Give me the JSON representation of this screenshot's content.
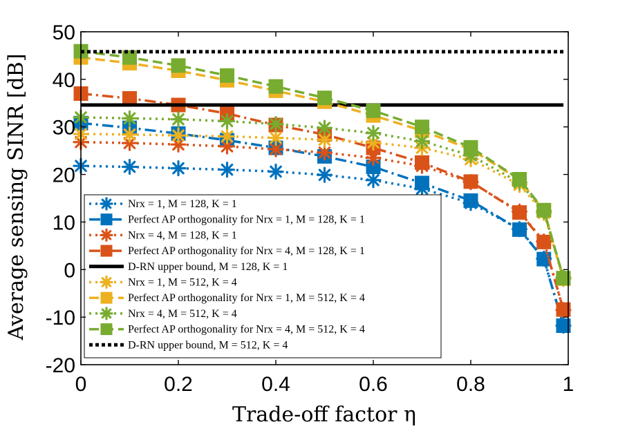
{
  "chart_data": {
    "type": "line",
    "title": "",
    "xlabel": "Trade-off factor η",
    "ylabel": "Average sensing SINR [dB]",
    "xlim": [
      0,
      1
    ],
    "ylim": [
      -20,
      50
    ],
    "xticks": [
      0,
      0.2,
      0.4,
      0.6,
      0.8,
      1
    ],
    "xtick_labels": [
      "0",
      "0.2",
      "0.4",
      "0.6",
      "0.8",
      "1"
    ],
    "yticks": [
      -20,
      -10,
      0,
      10,
      20,
      30,
      40,
      50
    ],
    "ytick_labels": [
      "-20",
      "-10",
      "0",
      "10",
      "20",
      "30",
      "40",
      "50"
    ],
    "grid": false,
    "legend_position": "bottom-left",
    "x": [
      0,
      0.1,
      0.2,
      0.3,
      0.4,
      0.5,
      0.6,
      0.7,
      0.8,
      0.9,
      0.95,
      0.99
    ],
    "series": [
      {
        "name": "N_rx = 1, M = 128, K = 1",
        "legend": "Nrx = 1, M = 128, K = 1",
        "color": "#0072BD",
        "style": "dotted",
        "marker": "asterisk",
        "values": [
          21.8,
          21.6,
          21.3,
          21.0,
          20.6,
          19.9,
          18.8,
          17.0,
          14.0,
          8.5,
          2.3,
          -11.8
        ]
      },
      {
        "name": "Perfect AP orthogonality for N_rx = 1, M = 128, K = 1",
        "legend": "Perfect AP orthogonality for Nrx = 1, M = 128, K = 1",
        "color": "#0072BD",
        "style": "dashdot",
        "marker": "square",
        "values": [
          30.8,
          29.8,
          28.6,
          27.2,
          25.6,
          23.8,
          21.6,
          18.2,
          14.5,
          8.4,
          2.2,
          -11.8
        ]
      },
      {
        "name": "N_rx = 4, M = 128, K = 1",
        "legend": "Nrx = 4, M = 128, K = 1",
        "color": "#D95319",
        "style": "dotted",
        "marker": "asterisk",
        "values": [
          26.8,
          26.6,
          26.3,
          25.9,
          25.3,
          24.6,
          23.5,
          21.8,
          18.4,
          12.2,
          5.9,
          -8.5
        ]
      },
      {
        "name": "Perfect AP orthogonality for N_rx = 4, M = 128, K = 1",
        "legend": "Perfect AP orthogonality for Nrx = 4, M = 128, K = 1",
        "color": "#D95319",
        "style": "dashdot",
        "marker": "square",
        "values": [
          37.0,
          36.0,
          34.6,
          32.8,
          30.4,
          28.4,
          25.6,
          22.5,
          18.5,
          12.0,
          5.8,
          -8.4
        ]
      },
      {
        "name": "D-RN upper bound, M = 128, K = 1",
        "legend": "D-RN upper bound, M = 128, K = 1",
        "color": "#000000",
        "style": "solid",
        "marker": "none",
        "values": [
          34.6,
          34.6,
          34.6,
          34.6,
          34.6,
          34.6,
          34.6,
          34.6,
          34.6,
          34.6,
          34.6,
          34.6
        ]
      },
      {
        "name": "N_rx = 1, M = 512, K = 4",
        "legend": "Nrx = 1, M = 512, K = 4",
        "color": "#EDB120",
        "style": "dotted",
        "marker": "asterisk",
        "values": [
          28.5,
          28.4,
          28.2,
          28.0,
          27.7,
          27.3,
          26.7,
          25.6,
          23.2,
          17.8,
          11.9,
          -2.0
        ]
      },
      {
        "name": "Perfect AP orthogonality for N_rx = 1, M = 512, K = 4",
        "legend": "Perfect AP orthogonality for Nrx = 1, M = 512, K = 4",
        "color": "#EDB120",
        "style": "dashed",
        "marker": "square",
        "values": [
          44.6,
          43.4,
          41.8,
          39.8,
          37.6,
          35.3,
          32.4,
          29.2,
          25.3,
          18.9,
          12.4,
          -1.9
        ]
      },
      {
        "name": "N_rx = 4, M = 512, K = 4",
        "legend": "Nrx = 4, M = 512, K = 4",
        "color": "#77AC30",
        "style": "dotted",
        "marker": "asterisk",
        "values": [
          32.0,
          31.8,
          31.6,
          31.2,
          30.6,
          29.8,
          28.7,
          27.0,
          24.0,
          18.3,
          12.3,
          -1.7
        ]
      },
      {
        "name": "Perfect AP orthogonality for N_rx = 4, M = 512, K = 4",
        "legend": "Perfect AP orthogonality for Nrx = 4, M = 512, K = 4",
        "color": "#77AC30",
        "style": "dashed",
        "marker": "square",
        "values": [
          45.9,
          44.6,
          42.9,
          40.8,
          38.5,
          36.1,
          33.4,
          30.0,
          25.7,
          19.0,
          12.5,
          -1.8
        ]
      },
      {
        "name": "D-RN upper bound, M = 512, K = 4",
        "legend": "D-RN upper bound, M = 512, K = 4",
        "color": "#000000",
        "style": "densedot",
        "marker": "none",
        "values": [
          45.8,
          45.8,
          45.8,
          45.8,
          45.8,
          45.8,
          45.8,
          45.8,
          45.8,
          45.8,
          45.8,
          45.8
        ]
      }
    ]
  }
}
